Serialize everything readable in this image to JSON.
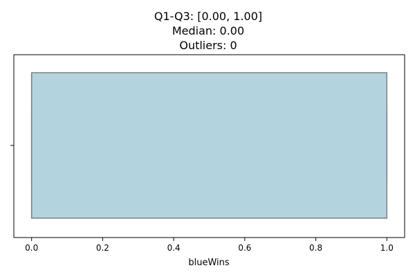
{
  "chart_data": {
    "type": "box",
    "title_lines": [
      "Q1-Q3: [0.00, 1.00]",
      "Median: 0.00",
      "Outliers: 0"
    ],
    "xlabel": "blueWins",
    "ylabel": "",
    "xlim": [
      -0.05,
      1.05
    ],
    "xticks": [
      0.0,
      0.2,
      0.4,
      0.6,
      0.8,
      1.0
    ],
    "xtick_labels": [
      "0.0",
      "0.2",
      "0.4",
      "0.6",
      "0.8",
      "1.0"
    ],
    "box": {
      "q1": 0.0,
      "median": 0.0,
      "q3": 1.0,
      "whisker_low": 0.0,
      "whisker_high": 1.0,
      "outliers": []
    },
    "colors": {
      "box_fill": "#b3d4df",
      "box_edge": "#7f7f7f",
      "axis": "#000000"
    },
    "grid": false
  }
}
